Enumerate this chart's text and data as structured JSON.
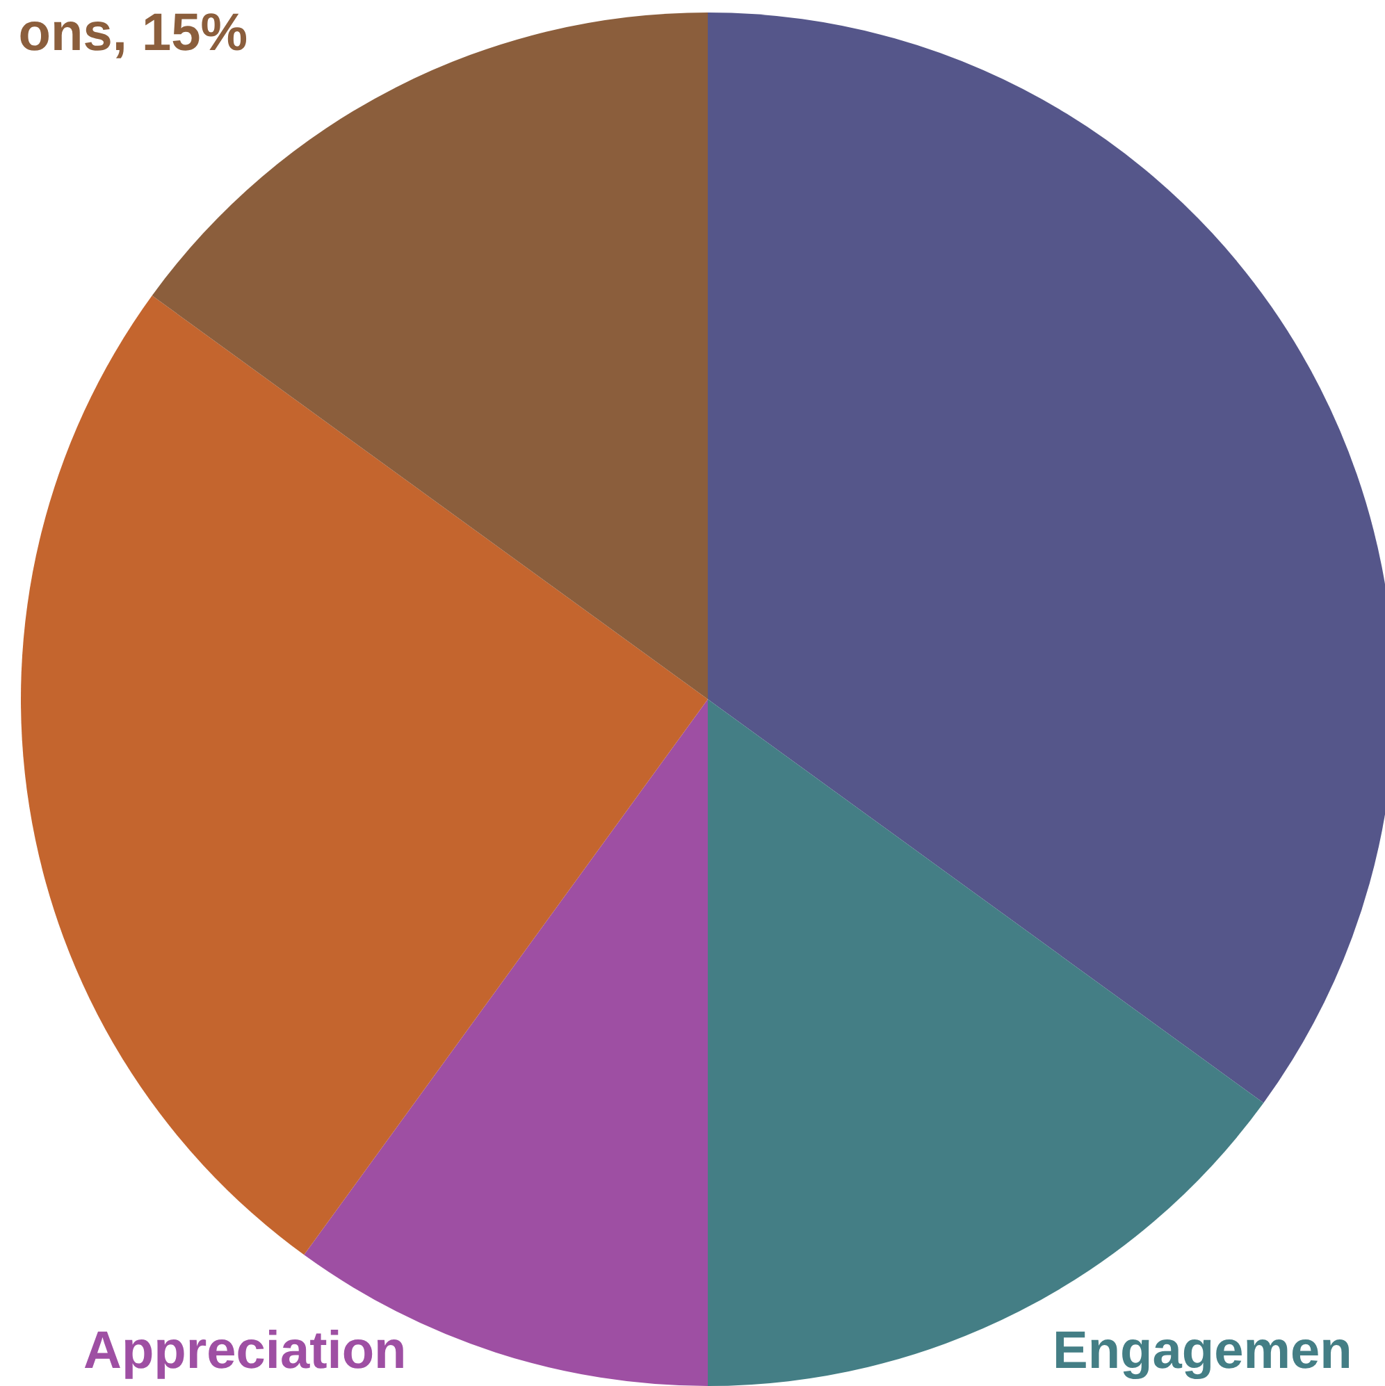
{
  "chart_data": {
    "type": "pie",
    "categories": [
      null,
      "Engagemen",
      "Appreciation",
      null,
      "ons"
    ],
    "values": [
      35,
      15,
      10,
      25,
      15
    ],
    "colors": [
      "#55568a",
      "#447e85",
      "#9e4fa3",
      "#c4652e",
      "#8b5e3c"
    ],
    "value_labels": [
      null,
      null,
      null,
      null,
      "15%"
    ]
  }
}
